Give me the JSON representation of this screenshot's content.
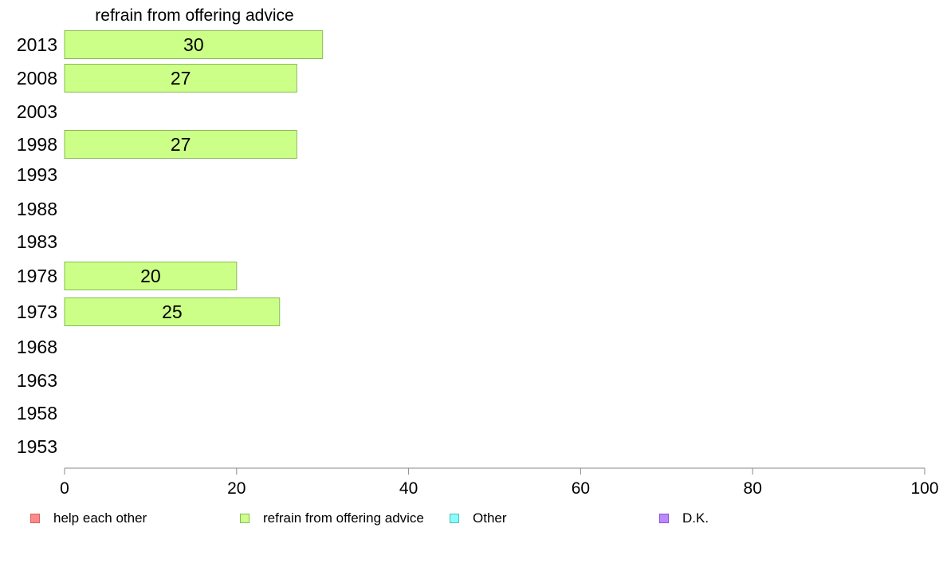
{
  "chart_data": {
    "type": "bar",
    "orientation": "horizontal",
    "stacked": true,
    "title": "refrain from offering advice",
    "categories": [
      "2013",
      "2008",
      "2003",
      "1998",
      "1993",
      "1988",
      "1983",
      "1978",
      "1973",
      "1968",
      "1963",
      "1958",
      "1953"
    ],
    "series": [
      {
        "name": "refrain from offering advice",
        "color": "#ccff88",
        "values": [
          30,
          27,
          null,
          27,
          null,
          null,
          null,
          20,
          25,
          null,
          null,
          null,
          null
        ]
      }
    ],
    "data_labels": [
      "30",
      "27",
      "",
      "27",
      "",
      "",
      "",
      "20",
      "25",
      "",
      "",
      "",
      ""
    ],
    "xlim": [
      0,
      100
    ],
    "xticks": [
      0,
      20,
      40,
      60,
      80,
      100
    ],
    "xtick_labels": [
      "0",
      "20",
      "40",
      "60",
      "80",
      "100"
    ],
    "grid": false,
    "legend_position": "bottom"
  },
  "legend": {
    "items": [
      {
        "label": "help each other",
        "color": "#ff8888"
      },
      {
        "label": "refrain from offering advice",
        "color": "#ccff88"
      },
      {
        "label": "Other",
        "color": "#88ffff"
      },
      {
        "label": "D.K.",
        "color": "#bb88ff"
      }
    ]
  }
}
